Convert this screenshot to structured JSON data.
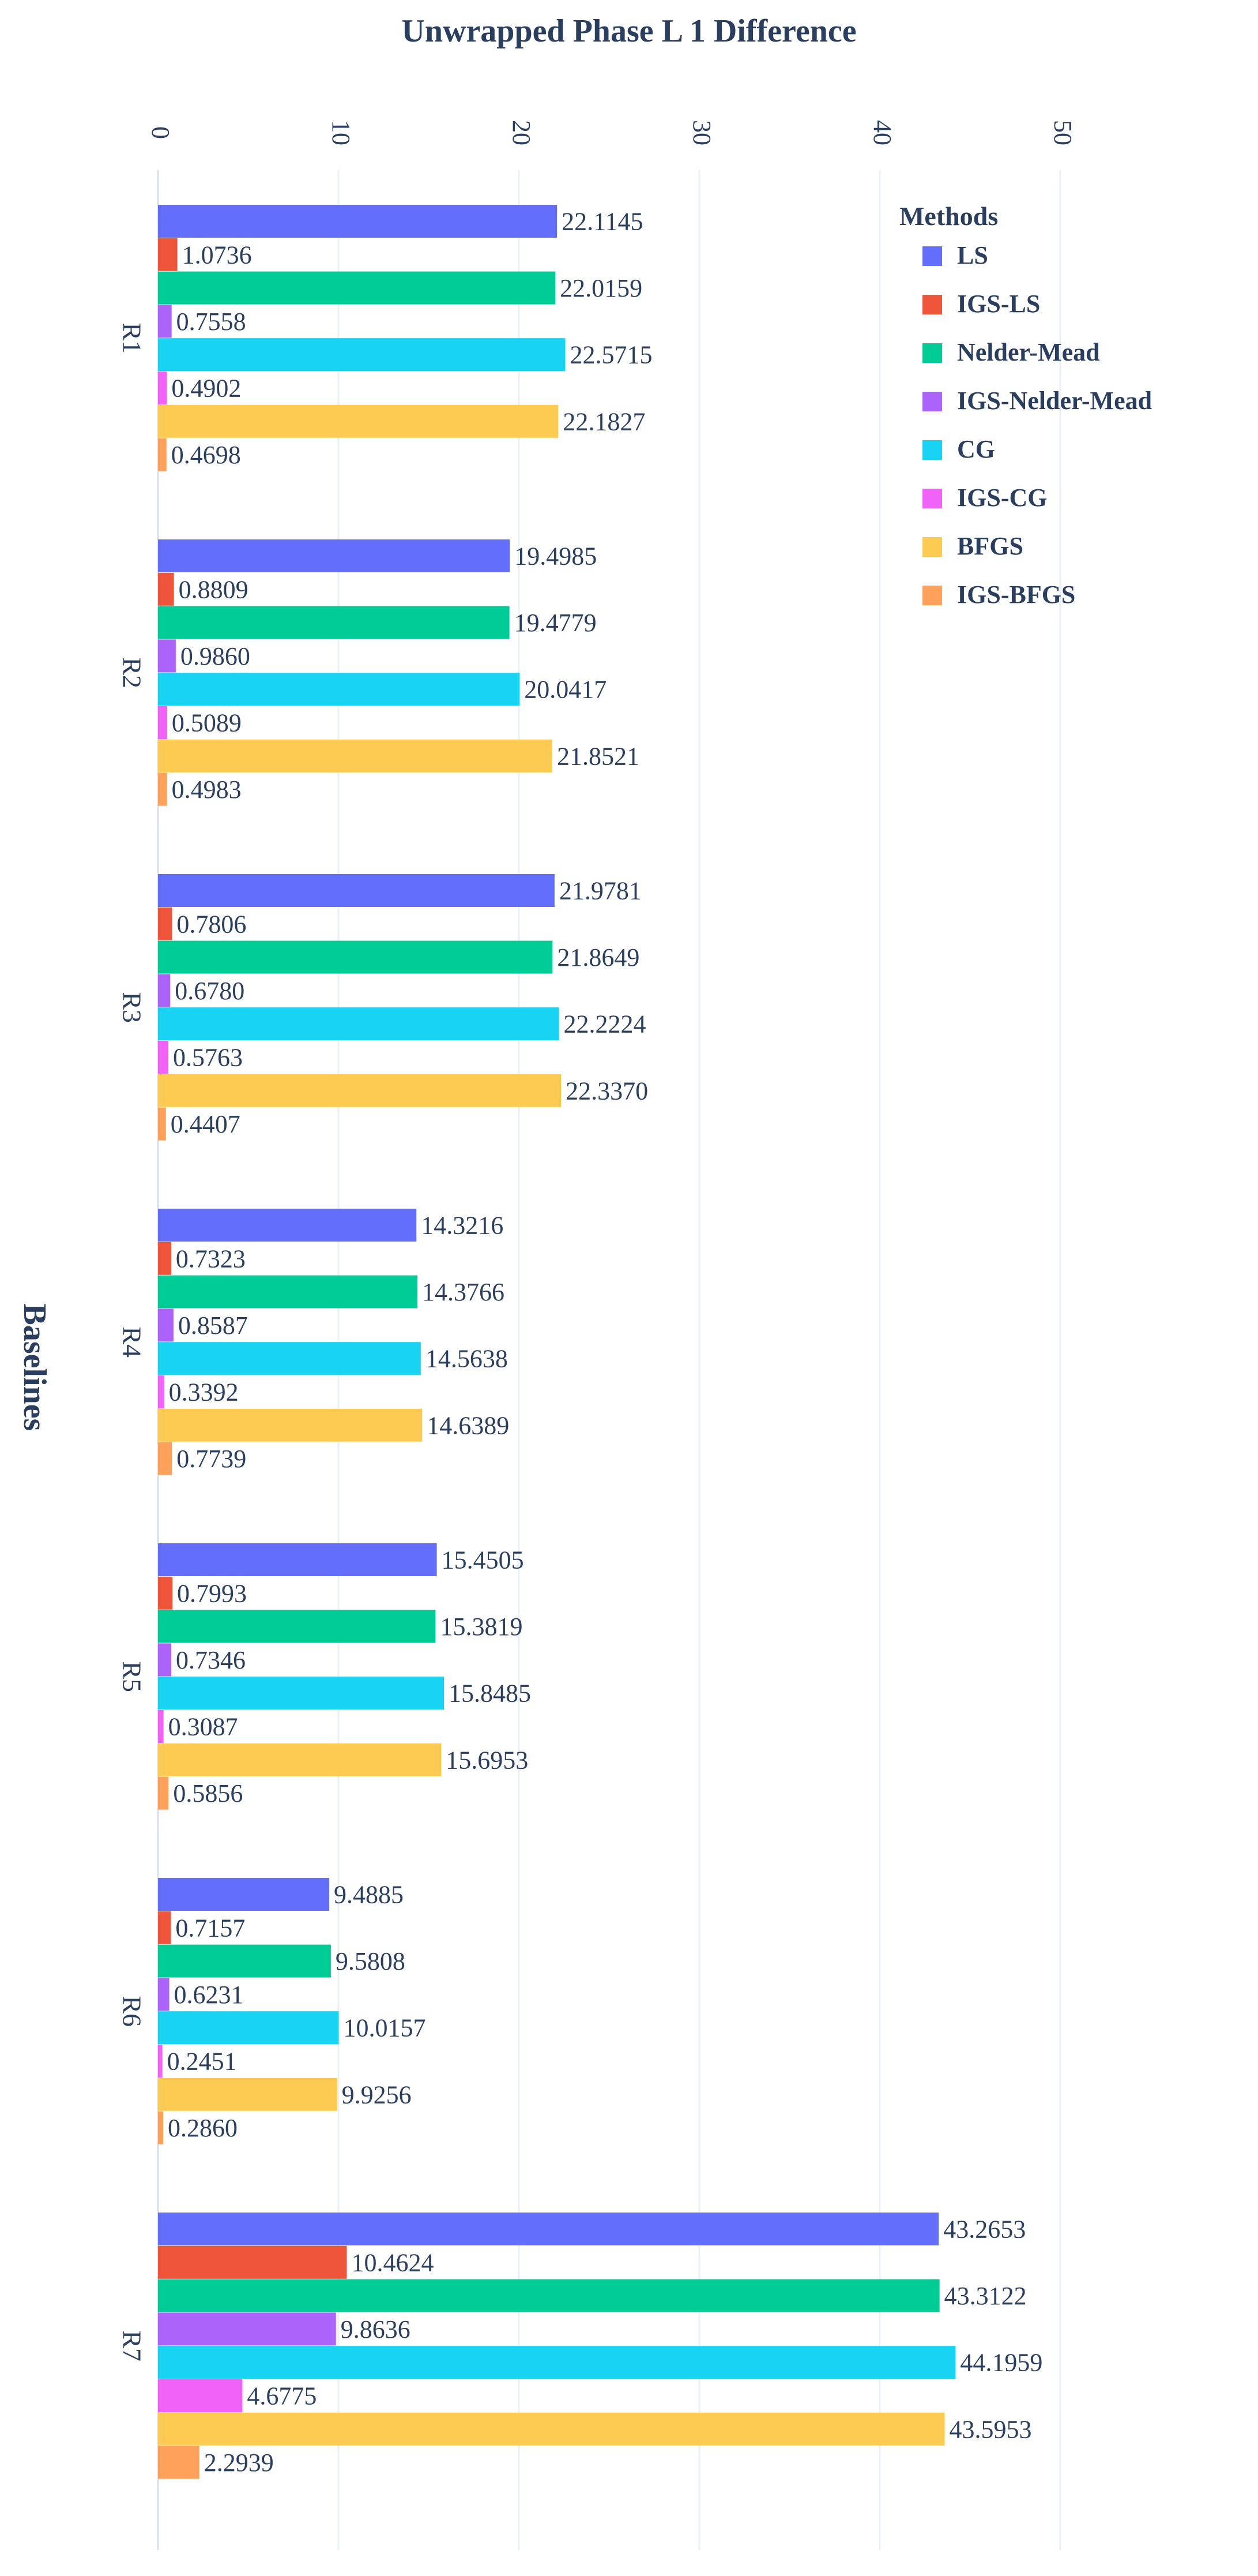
{
  "chart_data": {
    "type": "bar",
    "orientation": "horizontal",
    "title": "Unwrapped Phase L 1 Difference",
    "xlabel": "",
    "ylabel": "Baselines",
    "xlim": [
      0,
      60
    ],
    "xticks": [
      0,
      10,
      20,
      30,
      40,
      50
    ],
    "categories": [
      "R1",
      "R2",
      "R3",
      "R4",
      "R5",
      "R6",
      "R7"
    ],
    "legend_title": "Methods",
    "legend_position": "top-right",
    "grid": true,
    "series": [
      {
        "name": "LS",
        "color": "#636efa",
        "values": [
          22.1145,
          19.4985,
          21.9781,
          14.3216,
          15.4505,
          9.4885,
          43.2653
        ],
        "labels": [
          "22.1145",
          "19.4985",
          "21.9781",
          "14.3216",
          "15.4505",
          "9.4885",
          "43.2653"
        ]
      },
      {
        "name": "IGS-LS",
        "color": "#ef553b",
        "values": [
          1.0736,
          0.8809,
          0.7806,
          0.7323,
          0.7993,
          0.7157,
          10.4624
        ],
        "labels": [
          "1.0736",
          "0.8809",
          "0.7806",
          "0.7323",
          "0.7993",
          "0.7157",
          "10.4624"
        ]
      },
      {
        "name": "Nelder-Mead",
        "color": "#00cc96",
        "values": [
          22.0159,
          19.4779,
          21.8649,
          14.3766,
          15.3819,
          9.5808,
          43.3122
        ],
        "labels": [
          "22.0159",
          "19.4779",
          "21.8649",
          "14.3766",
          "15.3819",
          "9.5808",
          "43.3122"
        ]
      },
      {
        "name": "IGS-Nelder-Mead",
        "color": "#ab63fa",
        "values": [
          0.7558,
          0.986,
          0.678,
          0.8587,
          0.7346,
          0.6231,
          9.8636
        ],
        "labels": [
          "0.7558",
          "0.9860",
          "0.6780",
          "0.8587",
          "0.7346",
          "0.6231",
          "9.8636"
        ]
      },
      {
        "name": "CG",
        "color": "#19d3f3",
        "values": [
          22.5715,
          20.0417,
          22.2224,
          14.5638,
          15.8485,
          10.0157,
          44.1959
        ],
        "labels": [
          "22.5715",
          "20.0417",
          "22.2224",
          "14.5638",
          "15.8485",
          "10.0157",
          "44.1959"
        ]
      },
      {
        "name": "IGS-CG",
        "color": "#f062f8",
        "values": [
          0.4902,
          0.5089,
          0.5763,
          0.3392,
          0.3087,
          0.2451,
          4.6775
        ],
        "labels": [
          "0.4902",
          "0.5089",
          "0.5763",
          "0.3392",
          "0.3087",
          "0.2451",
          "4.6775"
        ]
      },
      {
        "name": "BFGS",
        "color": "#fecb52",
        "values": [
          22.1827,
          21.8521,
          22.337,
          14.6389,
          15.6953,
          9.9256,
          43.5953
        ],
        "labels": [
          "22.1827",
          "21.8521",
          "22.3370",
          "14.6389",
          "15.6953",
          "9.9256",
          "43.5953"
        ]
      },
      {
        "name": "IGS-BFGS",
        "color": "#ffa15a",
        "values": [
          0.4698,
          0.4983,
          0.4407,
          0.7739,
          0.5856,
          0.286,
          2.2939
        ],
        "labels": [
          "0.4698",
          "0.4983",
          "0.4407",
          "0.7739",
          "0.5856",
          "0.2860",
          "2.2939"
        ]
      }
    ]
  }
}
